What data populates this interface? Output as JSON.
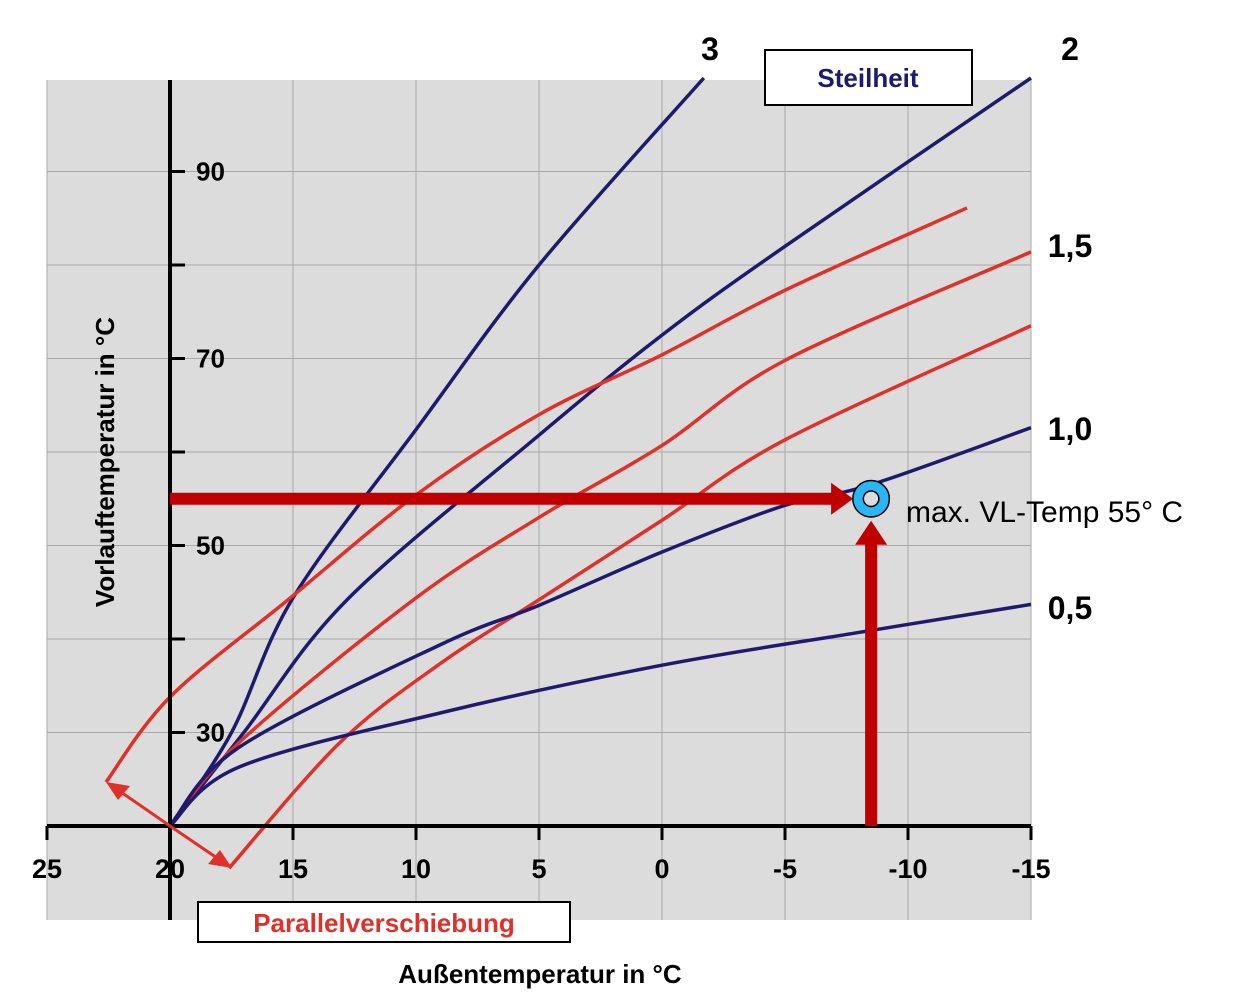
{
  "chart_data": {
    "type": "line",
    "xlabel": "Außentemperatur in °C",
    "ylabel": "Vorlauftemperatur in °C",
    "xlim": [
      25,
      -15
    ],
    "ylim": [
      20,
      100
    ],
    "x_ticks": [
      "25",
      "20",
      "15",
      "10",
      "5",
      "0",
      "-5",
      "-10",
      "-15"
    ],
    "x_tick_values": [
      25,
      20,
      15,
      10,
      5,
      0,
      -5,
      -10,
      -15
    ],
    "y_ticks": [
      "90",
      "70",
      "50",
      "30"
    ],
    "y_tick_values": [
      90,
      70,
      50,
      30
    ],
    "y_minor_ticks": [
      80,
      60,
      40
    ],
    "grid": true,
    "steilheit_label": "Steilheit",
    "parallel_label": "Parallelverschiebung",
    "annotation": "max. VL-Temp 55° C",
    "annotation_point": [
      -8.5,
      55
    ],
    "colors": {
      "blue": "#1f1a6e",
      "red": "#e0302a",
      "arrow": "#c00000",
      "marker": "#29b6f6",
      "background": "#dcdcdc"
    },
    "series": [
      {
        "name": "3",
        "color": "blue",
        "points": [
          [
            20,
            20
          ],
          [
            17.5,
            30
          ],
          [
            15,
            44.4
          ],
          [
            10,
            62.4
          ],
          [
            5,
            80
          ],
          [
            -1.7,
            100
          ]
        ]
      },
      {
        "name": "2",
        "color": "blue",
        "points": [
          [
            20,
            20
          ],
          [
            17,
            30
          ],
          [
            12.8,
            44.2
          ],
          [
            5,
            61.8
          ],
          [
            0,
            72.5
          ],
          [
            -5,
            82
          ],
          [
            -15,
            100
          ]
        ]
      },
      {
        "name": "1,5",
        "color": "red",
        "points": [
          [
            20,
            20
          ],
          [
            17.2,
            28.9
          ],
          [
            10.1,
            44.2
          ],
          [
            5,
            53
          ],
          [
            0,
            60.7
          ],
          [
            -5,
            69.8
          ],
          [
            -15,
            81.4
          ]
        ]
      },
      {
        "name": "",
        "color": "red",
        "points": [
          [
            22.6,
            24.7
          ],
          [
            20,
            33.8
          ],
          [
            15.2,
            44.2
          ],
          [
            10,
            55.4
          ],
          [
            5,
            64
          ],
          [
            0,
            70.4
          ],
          [
            -5,
            77.3
          ],
          [
            -12.4,
            86.1
          ]
        ]
      },
      {
        "name": "",
        "color": "red",
        "points": [
          [
            17.6,
            15.5
          ],
          [
            13.1,
            28.9
          ],
          [
            9,
            37.4
          ],
          [
            5,
            44.2
          ],
          [
            0,
            52.7
          ],
          [
            -5,
            61.3
          ],
          [
            -15,
            73.5
          ]
        ]
      },
      {
        "name": "1,0",
        "color": "blue",
        "points": [
          [
            20,
            20
          ],
          [
            17.2,
            28.4
          ],
          [
            9,
            39.4
          ],
          [
            5,
            43.6
          ],
          [
            0,
            49.3
          ],
          [
            -5,
            54.3
          ],
          [
            -8.5,
            56.5
          ],
          [
            -15,
            62.6
          ]
        ]
      },
      {
        "name": "0,5",
        "color": "blue",
        "points": [
          [
            20,
            20
          ],
          [
            17.2,
            26.3
          ],
          [
            9,
            32.1
          ],
          [
            0,
            37.2
          ],
          [
            -8,
            40.7
          ],
          [
            -15,
            43.7
          ]
        ]
      }
    ],
    "curve_labels": [
      "3",
      "2",
      "1,5",
      "1,0",
      "0,5"
    ]
  }
}
